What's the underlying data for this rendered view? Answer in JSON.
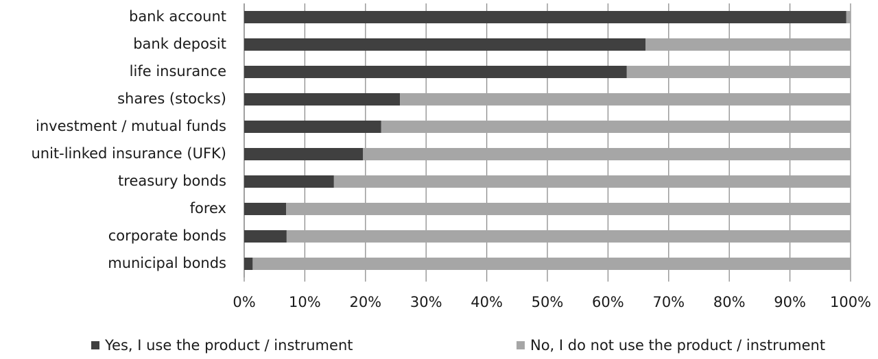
{
  "chart_data": {
    "type": "stacked_barh",
    "categories": [
      "bank account",
      "bank deposit",
      "life insurance",
      "shares (stocks)",
      "investment / mutual funds",
      "unit-linked insurance (UFK)",
      "treasury bonds",
      "forex",
      "corporate bonds",
      "municipal bonds"
    ],
    "series": [
      {
        "name": "Yes, I use the product / instrument",
        "color": "#404040",
        "values": [
          99.3,
          66.2,
          63.1,
          25.7,
          22.6,
          19.6,
          14.8,
          6.9,
          7.0,
          1.4
        ]
      },
      {
        "name": "No, I do not use the product / instrument",
        "color": "#a6a6a6",
        "values": [
          0.7,
          33.8,
          36.9,
          74.3,
          77.4,
          80.4,
          85.2,
          93.1,
          93.0,
          98.6
        ]
      }
    ],
    "xlim": [
      0,
      100
    ],
    "xticks": [
      {
        "value": 0,
        "label": "0%"
      },
      {
        "value": 10,
        "label": "10%"
      },
      {
        "value": 20,
        "label": "20%"
      },
      {
        "value": 30,
        "label": "30%"
      },
      {
        "value": 40,
        "label": "40%"
      },
      {
        "value": 50,
        "label": "50%"
      },
      {
        "value": 60,
        "label": "60%"
      },
      {
        "value": 70,
        "label": "70%"
      },
      {
        "value": 80,
        "label": "80%"
      },
      {
        "value": 90,
        "label": "90%"
      },
      {
        "value": 100,
        "label": "100%"
      }
    ],
    "grid": true,
    "legend": "bottom"
  }
}
